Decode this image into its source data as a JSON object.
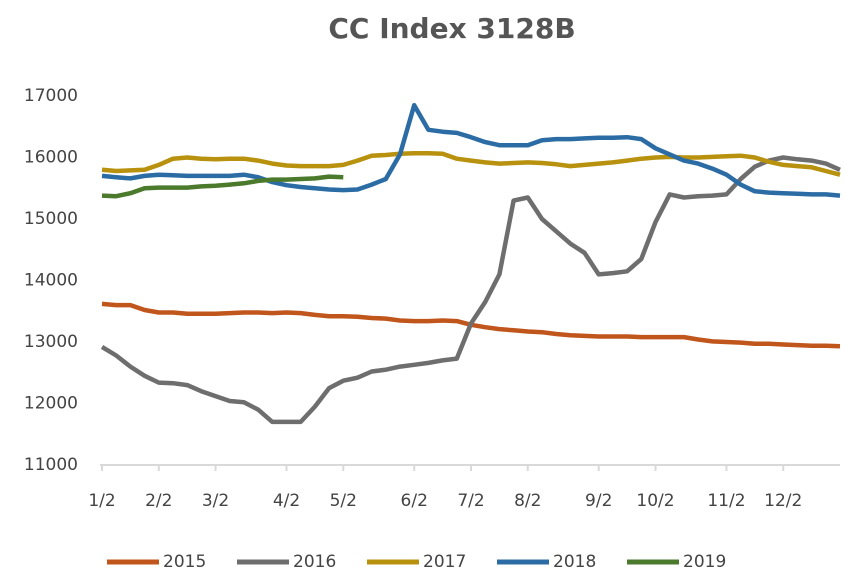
{
  "chart_data": {
    "type": "line",
    "title": "CC  Index  3128B",
    "categories": [
      "1/2",
      null,
      null,
      null,
      "2/2",
      null,
      null,
      null,
      "3/2",
      null,
      null,
      null,
      null,
      "4/2",
      null,
      null,
      null,
      "5/2",
      null,
      null,
      null,
      null,
      "6/2",
      null,
      null,
      null,
      "7/2",
      null,
      null,
      null,
      "8/2",
      null,
      null,
      null,
      null,
      "9/2",
      null,
      null,
      null,
      "10/2",
      null,
      null,
      null,
      null,
      "11/2",
      null,
      null,
      null,
      "12/2",
      null,
      null,
      null,
      null
    ],
    "series": [
      {
        "name": "2015",
        "color": "#c0561c",
        "values": [
          13620,
          13600,
          13600,
          13520,
          13480,
          13480,
          13460,
          13460,
          13460,
          13470,
          13480,
          13480,
          13470,
          13480,
          13470,
          13440,
          13420,
          13420,
          13410,
          13390,
          13380,
          13350,
          13340,
          13340,
          13350,
          13340,
          13280,
          13240,
          13210,
          13190,
          13170,
          13160,
          13130,
          13110,
          13100,
          13090,
          13090,
          13090,
          13080,
          13080,
          13080,
          13080,
          13040,
          13010,
          13000,
          12990,
          12970,
          12970,
          12960,
          12950,
          12940,
          12940,
          12930
        ]
      },
      {
        "name": "2016",
        "color": "#6e6e6e",
        "values": [
          12920,
          12780,
          12600,
          12450,
          12340,
          12330,
          12300,
          12200,
          12120,
          12040,
          12020,
          11900,
          11700,
          11700,
          11700,
          11950,
          12250,
          12370,
          12420,
          12520,
          12550,
          12600,
          12630,
          12660,
          12700,
          12730,
          13300,
          13650,
          14100,
          15300,
          15350,
          15000,
          14800,
          14600,
          14450,
          14100,
          14120,
          14150,
          14350,
          14950,
          15400,
          15350,
          15370,
          15380,
          15400,
          15650,
          15850,
          15950,
          16000,
          15970,
          15950,
          15900,
          15800
        ]
      },
      {
        "name": "2017",
        "color": "#b8920f",
        "values": [
          15800,
          15780,
          15790,
          15800,
          15880,
          15980,
          16000,
          15980,
          15970,
          15980,
          15980,
          15950,
          15900,
          15870,
          15860,
          15860,
          15860,
          15880,
          15950,
          16030,
          16040,
          16060,
          16070,
          16070,
          16060,
          15980,
          15950,
          15920,
          15900,
          15910,
          15920,
          15910,
          15890,
          15860,
          15880,
          15900,
          15920,
          15950,
          15980,
          16000,
          16010,
          16000,
          16000,
          16010,
          16020,
          16030,
          16000,
          15930,
          15880,
          15860,
          15840,
          15780,
          15720
        ]
      },
      {
        "name": "2018",
        "color": "#2c6ca4",
        "values": [
          15700,
          15680,
          15660,
          15700,
          15720,
          15710,
          15700,
          15700,
          15700,
          15700,
          15720,
          15680,
          15600,
          15550,
          15520,
          15500,
          15480,
          15470,
          15480,
          15560,
          15650,
          16050,
          16850,
          16450,
          16420,
          16400,
          16330,
          16250,
          16200,
          16200,
          16200,
          16280,
          16300,
          16300,
          16310,
          16320,
          16320,
          16330,
          16300,
          16150,
          16050,
          15950,
          15900,
          15820,
          15720,
          15560,
          15450,
          15430,
          15420,
          15410,
          15400,
          15400,
          15380
        ]
      },
      {
        "name": "2019",
        "color": "#4b7a2c",
        "values": [
          15380,
          15370,
          15420,
          15500,
          15510,
          15510,
          15510,
          15530,
          15540,
          15560,
          15580,
          15620,
          15640,
          15640,
          15650,
          15660,
          15690,
          15680,
          null,
          null,
          null,
          null,
          null,
          null,
          null,
          null,
          null,
          null,
          null,
          null,
          null,
          null,
          null,
          null,
          null,
          null,
          null,
          null,
          null,
          null,
          null,
          null,
          null,
          null,
          null,
          null,
          null,
          null,
          null,
          null,
          null,
          null,
          null
        ]
      }
    ],
    "ylim": [
      11000,
      17000
    ],
    "yticks": [
      11000,
      12000,
      13000,
      14000,
      15000,
      16000,
      17000
    ],
    "grid": false,
    "legend": "bottom"
  }
}
